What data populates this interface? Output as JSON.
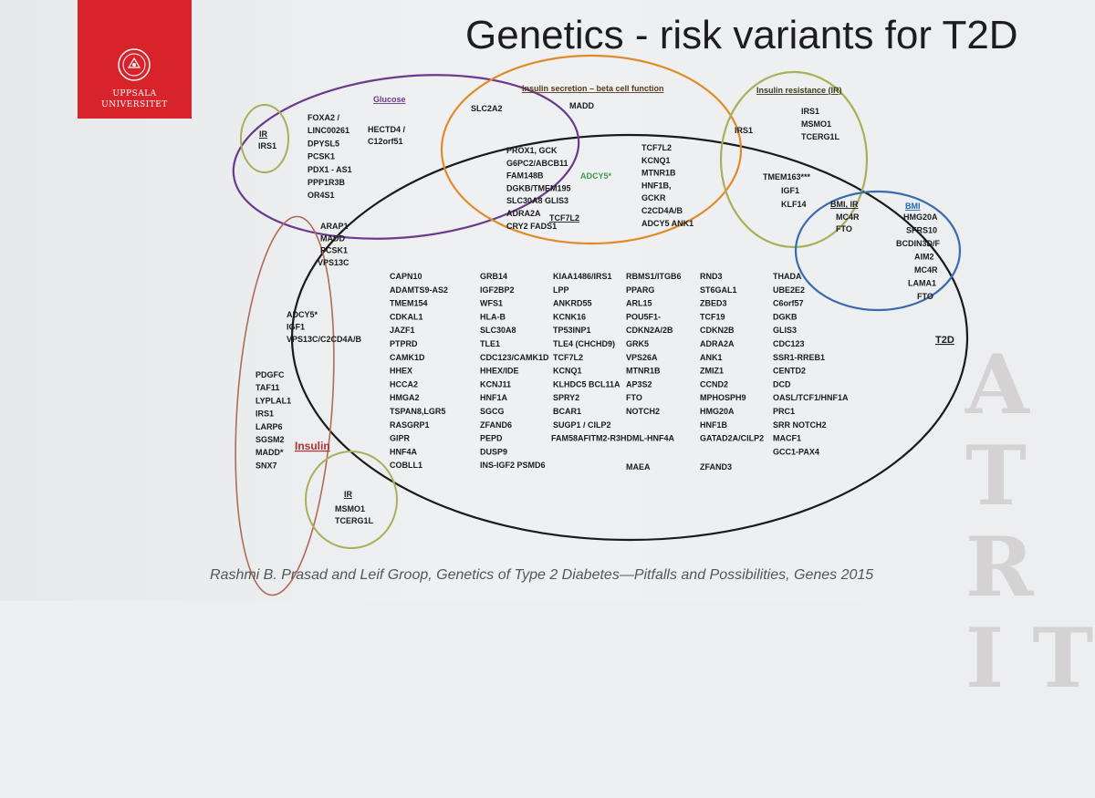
{
  "slide": {
    "title": "Genetics - risk variants for T2D",
    "citation": "Rashmi B. Prasad and Leif Groop, Genetics of Type 2 Diabetes—Pitfalls and Possibilities, Genes 2015",
    "logo_lines": [
      "UPPSALA",
      "UNIVERSITET"
    ]
  },
  "colors": {
    "glucose": "#6a3a8e",
    "insulin_secretion": "#e08a2a",
    "insulin_resistance": "#a8b05a",
    "bmi_ir": "#3a6ab0",
    "insulin": "#b06a5a",
    "ir_small": "#a8b05a",
    "t2d": "#1a1a1a",
    "purple_genes": "#7a4a9e",
    "orange_genes": "#d0701a",
    "blue_genes": "#1a6ab8",
    "green_gene": "#3aa04a",
    "insulin_label": "#b03030"
  },
  "groups": {
    "glucose": {
      "label": "Glucose"
    },
    "insulin_secretion": {
      "label": "Insulin secretion – beta cell function"
    },
    "insulin_resistance": {
      "label": "Insulin resistance (IR)"
    },
    "bmi_ir": {
      "label": "BMI, IR"
    },
    "bmi": {
      "label": "BMI"
    },
    "t2d": {
      "label": "T2D"
    },
    "insulin": {
      "label": "Insulin"
    },
    "ir_top": {
      "label": "IR"
    },
    "ir_bottom": {
      "label": "IR"
    }
  },
  "genes": {
    "ir_top": [
      "IRS1"
    ],
    "glucose_purple": [
      "FOXA2 /",
      "LINC00261",
      "DPYSL5",
      "PCSK1",
      "PDX1 - AS1",
      "PPP1R3B",
      "OR4S1"
    ],
    "glucose_black": [
      "HECTD4 /",
      "C12orf51"
    ],
    "secretion_only": [
      "SLC2A2",
      "MADD"
    ],
    "secretion_t2d_black": [
      "PROX1, GCK",
      "G6PC2/ABCB11",
      "FAM148B",
      "DGKB/TMEM195",
      "SLC30A8  GLIS3",
      "ADRA2A",
      "CRY2  FADS1"
    ],
    "secretion_green": "ADCY5*",
    "secretion_underlined": "TCF7L2",
    "secretion_t2d_orange": [
      "TCF7L2",
      "KCNQ1",
      "MTNR1B",
      "HNF1B,",
      "GCKR",
      "C2CD4A/B",
      "ADCY5  ANK1"
    ],
    "resistance_only": [
      "IRS1",
      "MSMO1",
      "TCERG1L"
    ],
    "secretion_resistance": [
      "IRS1"
    ],
    "resistance_t2d": [
      "TMEM163***",
      "IGF1",
      "KLF14"
    ],
    "bmi_ir_genes": [
      "MC4R",
      "FTO"
    ],
    "bmi_genes": [
      "HMG20A",
      "SFRS10",
      "BCDIN3D/F",
      "AIM2",
      "MC4R",
      "LAMA1",
      "FTO"
    ],
    "glucose_insulin_t2d": [
      "ARAP1",
      "MADD",
      "PCSK1",
      "VPS13C"
    ],
    "insulin_t2d": [
      "ADCY5*",
      "IGF1",
      "VPS13C/C2CD4A/B"
    ],
    "insulin_only": [
      "PDGFC",
      "TAF11",
      "LYPLAL1",
      "IRS1",
      "LARP6",
      "SGSM2",
      "MADD*",
      "SNX7"
    ],
    "ir_bottom": [
      "MSMO1",
      "TCERG1L"
    ],
    "t2d_columns": [
      [
        "CAPN10",
        "ADAMTS9-AS2",
        "TMEM154",
        "CDKAL1",
        "JAZF1",
        "PTPRD",
        "CAMK1D",
        "HHEX",
        "HCCA2",
        "HMGA2",
        "TSPAN8,LGR5",
        "RASGRP1",
        "GIPR",
        "HNF4A",
        "COBLL1"
      ],
      [
        "GRB14",
        "IGF2BP2",
        "WFS1",
        "HLA-B",
        "SLC30A8",
        "TLE1",
        "CDC123/CAMK1D",
        "HHEX/IDE",
        "KCNJ11",
        "HNF1A",
        "SGCG",
        "ZFAND6",
        "PEPD",
        "DUSP9",
        "INS-IGF2 PSMD6"
      ],
      [
        "KIAA1486/IRS1",
        "LPP",
        "ANKRD55",
        "KCNK16",
        "TP53INP1",
        "TLE4 (CHCHD9)",
        "TCF7L2",
        "KCNQ1",
        "KLHDC5  BCL11A",
        "SPRY2",
        "BCAR1",
        "SUGP1 / CILP2",
        "FAM58AFITM2-R3HDML-HNF4A"
      ],
      [
        "RBMS1/ITGB6",
        "PPARG",
        "ARL15",
        "POU5F1-",
        "CDKN2A/2B",
        "GRK5",
        "VPS26A",
        "MTNR1B",
        "AP3S2",
        "FTO",
        "NOTCH2"
      ],
      [
        "RND3",
        "ST6GAL1",
        "ZBED3",
        "TCF19",
        "CDKN2B",
        "ADRA2A",
        "ANK1",
        "ZMIZ1",
        "CCND2",
        "MPHOSPH9",
        "HMG20A",
        "HNF1B",
        "GATAD2A/CILP2"
      ],
      [
        "THADA",
        "UBE2E2",
        "C6orf57",
        "DGKB",
        "GLIS3",
        "CDC123",
        "SSR1-RREB1",
        "CENTD2",
        "DCD",
        "OASL/TCF1/HNF1A",
        "PRC1",
        "SRR NOTCH2",
        "MACF1",
        "GCC1-PAX4"
      ]
    ],
    "t2d_extra": [
      "MAEA",
      "ZFAND3"
    ]
  }
}
